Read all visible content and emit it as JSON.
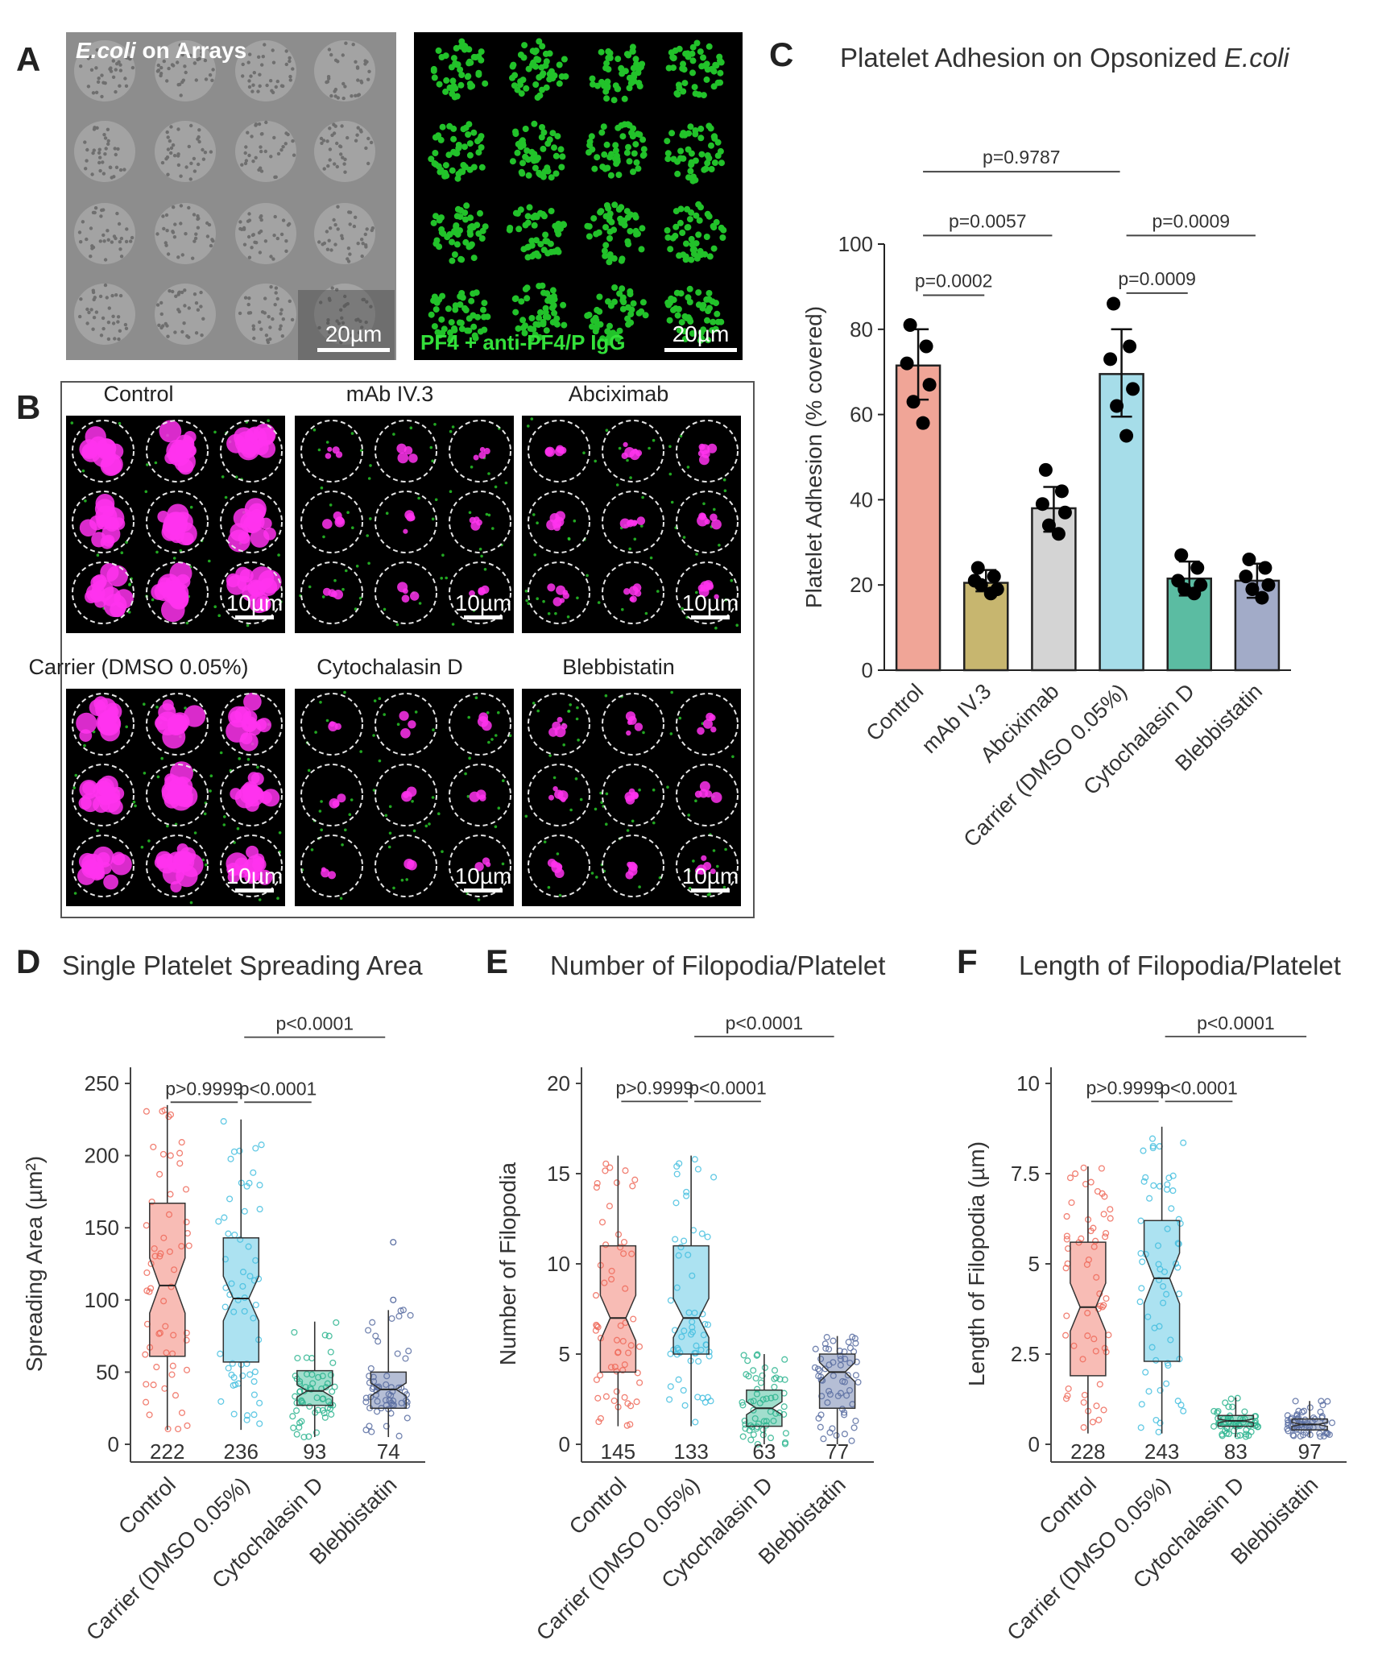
{
  "panel_labels": {
    "a": "A",
    "b": "B",
    "c": "C",
    "d": "D",
    "e": "E",
    "f": "F"
  },
  "panel_a": {
    "brightfield_label_italic": "E.coli",
    "brightfield_label_rest": " on Arrays",
    "fluor_label": "PF4 + anti-PF4/P IgG",
    "scale_bar": "20µm",
    "colors": {
      "bacteria": "#22c22a",
      "bright_bg": "#8c8c8c"
    }
  },
  "panel_b": {
    "conditions": [
      "Control",
      "mAb IV.3",
      "Abciximab",
      "Carrier (DMSO 0.05%)",
      "Cytochalasin D",
      "Blebbistatin"
    ],
    "scale_bar": "10µm",
    "colors": {
      "platelet": "#ff33ee",
      "bacteria": "#2bd12b"
    }
  },
  "chart_data": [
    {
      "panel": "C",
      "type": "bar",
      "title_prefix": "Platelet Adhesion on Opsonized ",
      "title_italic": "E.coli",
      "ylabel": "Platelet Adhesion (% covered)",
      "ylim": [
        0,
        100
      ],
      "yticks": [
        0,
        20,
        40,
        60,
        80,
        100
      ],
      "categories": [
        "Control",
        "mAb IV.3",
        "Abciximab",
        "Carrier (DMSO 0.05%)",
        "Cytochalasin D",
        "Blebbistatin"
      ],
      "means": [
        71.5,
        20.5,
        38,
        69.5,
        21.5,
        21
      ],
      "error_low": [
        63.5,
        18.5,
        32.5,
        59.5,
        17.5,
        17
      ],
      "error_high": [
        80,
        23.5,
        43,
        80,
        25.5,
        25
      ],
      "points": [
        [
          81,
          76,
          72,
          67,
          63,
          58
        ],
        [
          24,
          22,
          21,
          19,
          20,
          18
        ],
        [
          47,
          42,
          39,
          37,
          34,
          32
        ],
        [
          86,
          76,
          73,
          66,
          62,
          55
        ],
        [
          27,
          24,
          21,
          20,
          19,
          18
        ],
        [
          26,
          24,
          22,
          20,
          19,
          17
        ]
      ],
      "bar_colors": [
        "#f0a597",
        "#c7b66f",
        "#d4d4d4",
        "#a6dde9",
        "#5bbca2",
        "#a2abc8"
      ],
      "comparisons": [
        {
          "label": "p=0.9787",
          "from": 0,
          "to": 3,
          "y": 117
        },
        {
          "label": "p=0.0057",
          "from": 0,
          "to": 2,
          "y": 102
        },
        {
          "label": "p=0.0009",
          "from": 3,
          "to": 5,
          "y": 102
        },
        {
          "label": "p=0.0002",
          "from": 0,
          "to": 1,
          "y": 88
        },
        {
          "label": "p=0.0009",
          "from": 3,
          "to": 4,
          "y": 88.5
        }
      ]
    },
    {
      "panel": "D",
      "type": "box",
      "title": "Single Platelet Spreading Area",
      "ylabel": "Spreading Area (µm²)",
      "ylim": [
        0,
        250
      ],
      "yticks": [
        0,
        50,
        100,
        150,
        200,
        250
      ],
      "categories": [
        "Control",
        "Carrier (DMSO 0.05%)",
        "Cytochalasin D",
        "Blebbistatin"
      ],
      "n": [
        "222",
        "236",
        "93",
        "74"
      ],
      "box": [
        {
          "min": 10,
          "q1": 61,
          "median": 110,
          "q3": 167,
          "max": 235
        },
        {
          "min": 10,
          "q1": 57,
          "median": 101,
          "q3": 143,
          "max": 225
        },
        {
          "min": 5,
          "q1": 27,
          "median": 37,
          "q3": 51,
          "max": 85
        },
        {
          "min": 5,
          "q1": 25,
          "median": 38,
          "q3": 50,
          "max": 93
        }
      ],
      "outliers": [
        [],
        [],
        [],
        [
          140,
          100
        ]
      ],
      "colors": [
        "#ef6a5a",
        "#46bfdf",
        "#2fb591",
        "#5a6ea2"
      ],
      "comparisons": [
        {
          "label": "p<0.0001",
          "from": 1,
          "to": 3,
          "y": 282
        },
        {
          "label": "p>0.9999",
          "from": 0,
          "to": 1,
          "y": 237
        },
        {
          "label": "p<0.0001",
          "from": 1,
          "to": 2,
          "y": 237
        }
      ]
    },
    {
      "panel": "E",
      "type": "box",
      "title": "Number of Filopodia/Platelet",
      "ylabel": "Number of Filopodia",
      "ylim": [
        0,
        20
      ],
      "yticks": [
        0,
        5,
        10,
        15,
        20
      ],
      "categories": [
        "Control",
        "Carrier (DMSO 0.05%)",
        "Cytochalasin D",
        "Blebbistatin"
      ],
      "n": [
        "145",
        "133",
        "63",
        "77"
      ],
      "box": [
        {
          "min": 1,
          "q1": 4,
          "median": 7,
          "q3": 11,
          "max": 16
        },
        {
          "min": 1,
          "q1": 5,
          "median": 7,
          "q3": 11,
          "max": 16
        },
        {
          "min": 0,
          "q1": 1,
          "median": 2,
          "q3": 3,
          "max": 5
        },
        {
          "min": 0,
          "q1": 2,
          "median": 4,
          "q3": 5,
          "max": 6
        }
      ],
      "outliers": [
        [],
        [],
        [],
        []
      ],
      "colors": [
        "#ef6a5a",
        "#46bfdf",
        "#2fb591",
        "#5a6ea2"
      ],
      "comparisons": [
        {
          "label": "p<0.0001",
          "from": 1,
          "to": 3,
          "y": 22.6
        },
        {
          "label": "p>0.9999",
          "from": 0,
          "to": 1,
          "y": 19
        },
        {
          "label": "p<0.0001",
          "from": 1,
          "to": 2,
          "y": 19
        }
      ]
    },
    {
      "panel": "F",
      "type": "box",
      "title": "Length of Filopodia/Platelet",
      "ylabel": "Length of Filopodia (µm)",
      "ylim": [
        0,
        10
      ],
      "yticks": [
        0,
        2.5,
        5,
        7.5,
        10
      ],
      "ytick_labels": [
        "0",
        "2.5",
        "5",
        "7.5",
        "10"
      ],
      "categories": [
        "Control",
        "Carrier (DMSO 0.05%)",
        "Cytochalasin D",
        "Blebbistatin"
      ],
      "n": [
        "228",
        "243",
        "83",
        "97"
      ],
      "box": [
        {
          "min": 0.3,
          "q1": 1.9,
          "median": 3.8,
          "q3": 5.6,
          "max": 7.7
        },
        {
          "min": 0.3,
          "q1": 2.3,
          "median": 4.6,
          "q3": 6.2,
          "max": 8.8
        },
        {
          "min": 0.2,
          "q1": 0.5,
          "median": 0.65,
          "q3": 0.8,
          "max": 1.3
        },
        {
          "min": 0.2,
          "q1": 0.4,
          "median": 0.55,
          "q3": 0.7,
          "max": 1.2
        }
      ],
      "outliers": [
        [],
        [],
        [],
        []
      ],
      "colors": [
        "#ef6a5a",
        "#46bfdf",
        "#2fb591",
        "#5a6ea2"
      ],
      "comparisons": [
        {
          "label": "p<0.0001",
          "from": 1,
          "to": 3,
          "y": 11.3
        },
        {
          "label": "p>0.9999",
          "from": 0,
          "to": 1,
          "y": 9.5
        },
        {
          "label": "p<0.0001",
          "from": 1,
          "to": 2,
          "y": 9.5
        }
      ]
    }
  ]
}
